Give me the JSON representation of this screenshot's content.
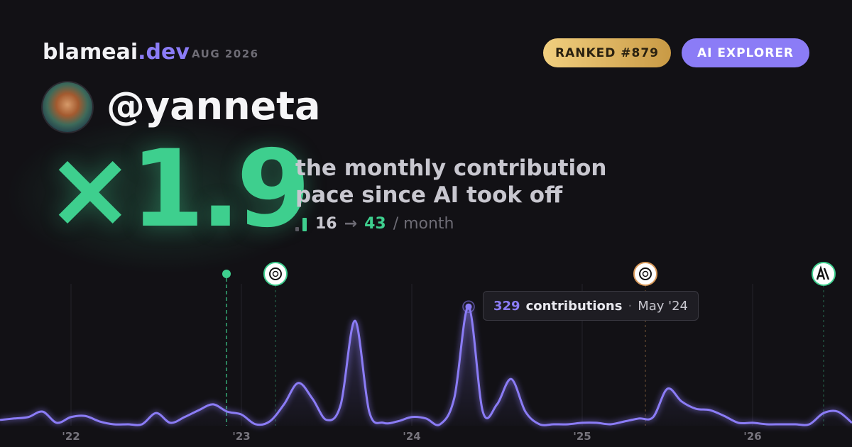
{
  "header": {
    "brand": "blameai",
    "brand_suffix": ".dev",
    "date": "AUG 2026",
    "rank": "RANKED #879",
    "badge": "AI EXPLORER"
  },
  "profile": {
    "handle": "@yanneta"
  },
  "headline": {
    "multiplier": "×1.9",
    "caption_line1": "the monthly contribution",
    "caption_line2": "pace since AI took off",
    "before": "16",
    "arrow": "→",
    "after": "43",
    "unit": "/ month"
  },
  "chart_data": {
    "type": "line",
    "color": "#8b7cf6",
    "categories": [
      null,
      null,
      null,
      null,
      null,
      "'22",
      null,
      null,
      null,
      null,
      null,
      null,
      null,
      null,
      null,
      null,
      null,
      "'23",
      null,
      null,
      null,
      null,
      null,
      null,
      null,
      null,
      null,
      null,
      null,
      "'24",
      null,
      null,
      null,
      null,
      null,
      null,
      null,
      null,
      null,
      null,
      null,
      "'25",
      null,
      null,
      null,
      null,
      null,
      null,
      null,
      null,
      null,
      null,
      null,
      "'26",
      null,
      null,
      null,
      null,
      null,
      null,
      null
    ],
    "values": [
      16,
      20,
      24,
      39,
      8,
      24,
      27,
      12,
      4,
      4,
      4,
      35,
      8,
      24,
      43,
      59,
      39,
      31,
      4,
      12,
      59,
      118,
      75,
      16,
      59,
      290,
      39,
      8,
      12,
      24,
      20,
      4,
      78,
      329,
      39,
      59,
      129,
      39,
      4,
      4,
      4,
      8,
      8,
      4,
      12,
      20,
      24,
      102,
      67,
      47,
      43,
      27,
      8,
      8,
      4,
      4,
      4,
      4,
      35,
      39,
      8
    ],
    "ylim": [
      0,
      400
    ],
    "tooltip": {
      "label": "contributions",
      "separator": "·",
      "date": "May '24"
    }
  }
}
